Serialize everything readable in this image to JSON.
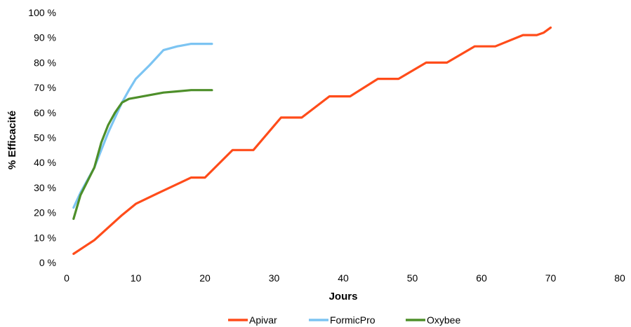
{
  "chart_data": {
    "type": "line",
    "title": "",
    "xlabel": "Jours",
    "ylabel": "% Efficacité",
    "xlim": [
      0,
      80
    ],
    "ylim": [
      0,
      100
    ],
    "x_ticks": [
      "0",
      "10",
      "20",
      "30",
      "40",
      "50",
      "60",
      "70",
      "80"
    ],
    "y_ticks": [
      "0 %",
      "10 %",
      "20 %",
      "30 %",
      "40 %",
      "50 %",
      "60 %",
      "70 %",
      "80 %",
      "90 %",
      "100 %"
    ],
    "grid": false,
    "legend_position": "bottom",
    "series": [
      {
        "name": "Apivar",
        "color": "#FF4C1A",
        "points": [
          [
            1,
            3.5
          ],
          [
            4,
            9
          ],
          [
            8,
            19
          ],
          [
            10,
            23.5
          ],
          [
            13,
            27.5
          ],
          [
            18,
            34
          ],
          [
            20,
            34
          ],
          [
            24,
            45
          ],
          [
            27,
            45
          ],
          [
            31,
            58
          ],
          [
            34,
            58
          ],
          [
            38,
            66.5
          ],
          [
            41,
            66.5
          ],
          [
            45,
            73.5
          ],
          [
            48,
            73.5
          ],
          [
            52,
            80
          ],
          [
            55,
            80
          ],
          [
            59,
            86.5
          ],
          [
            62,
            86.5
          ],
          [
            66,
            91
          ],
          [
            68,
            91
          ],
          [
            69,
            92
          ],
          [
            70,
            94
          ]
        ]
      },
      {
        "name": "FormicPro",
        "color": "#7CC4F2",
        "points": [
          [
            1,
            22
          ],
          [
            2,
            28
          ],
          [
            4,
            38
          ],
          [
            5,
            45
          ],
          [
            6,
            52
          ],
          [
            7,
            58
          ],
          [
            8,
            64
          ],
          [
            9,
            69
          ],
          [
            10,
            73.5
          ],
          [
            12,
            79
          ],
          [
            14,
            85
          ],
          [
            16,
            86.5
          ],
          [
            18,
            87.5
          ],
          [
            20,
            87.5
          ],
          [
            21,
            87.5
          ]
        ]
      },
      {
        "name": "Oxybee",
        "color": "#4E8F2A",
        "points": [
          [
            1,
            17.5
          ],
          [
            2,
            27
          ],
          [
            4,
            38
          ],
          [
            5,
            48
          ],
          [
            6,
            55
          ],
          [
            7,
            60
          ],
          [
            8,
            64
          ],
          [
            9,
            65.5
          ],
          [
            10,
            66
          ],
          [
            12,
            67
          ],
          [
            14,
            68
          ],
          [
            16,
            68.5
          ],
          [
            18,
            69
          ],
          [
            21,
            69
          ]
        ]
      }
    ]
  }
}
